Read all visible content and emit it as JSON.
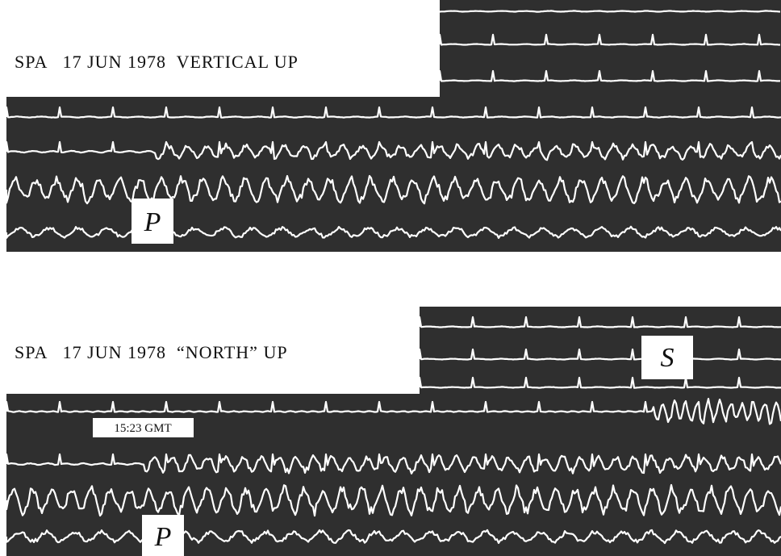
{
  "panels": [
    {
      "label": "SPA   17 JUN 1978  VERTICAL UP",
      "phase": "P"
    },
    {
      "label": "SPA   17 JUN 1978  “NORTH” UP",
      "phase": "P",
      "second_phase": "S",
      "time_mark": "15:23 GMT"
    }
  ]
}
